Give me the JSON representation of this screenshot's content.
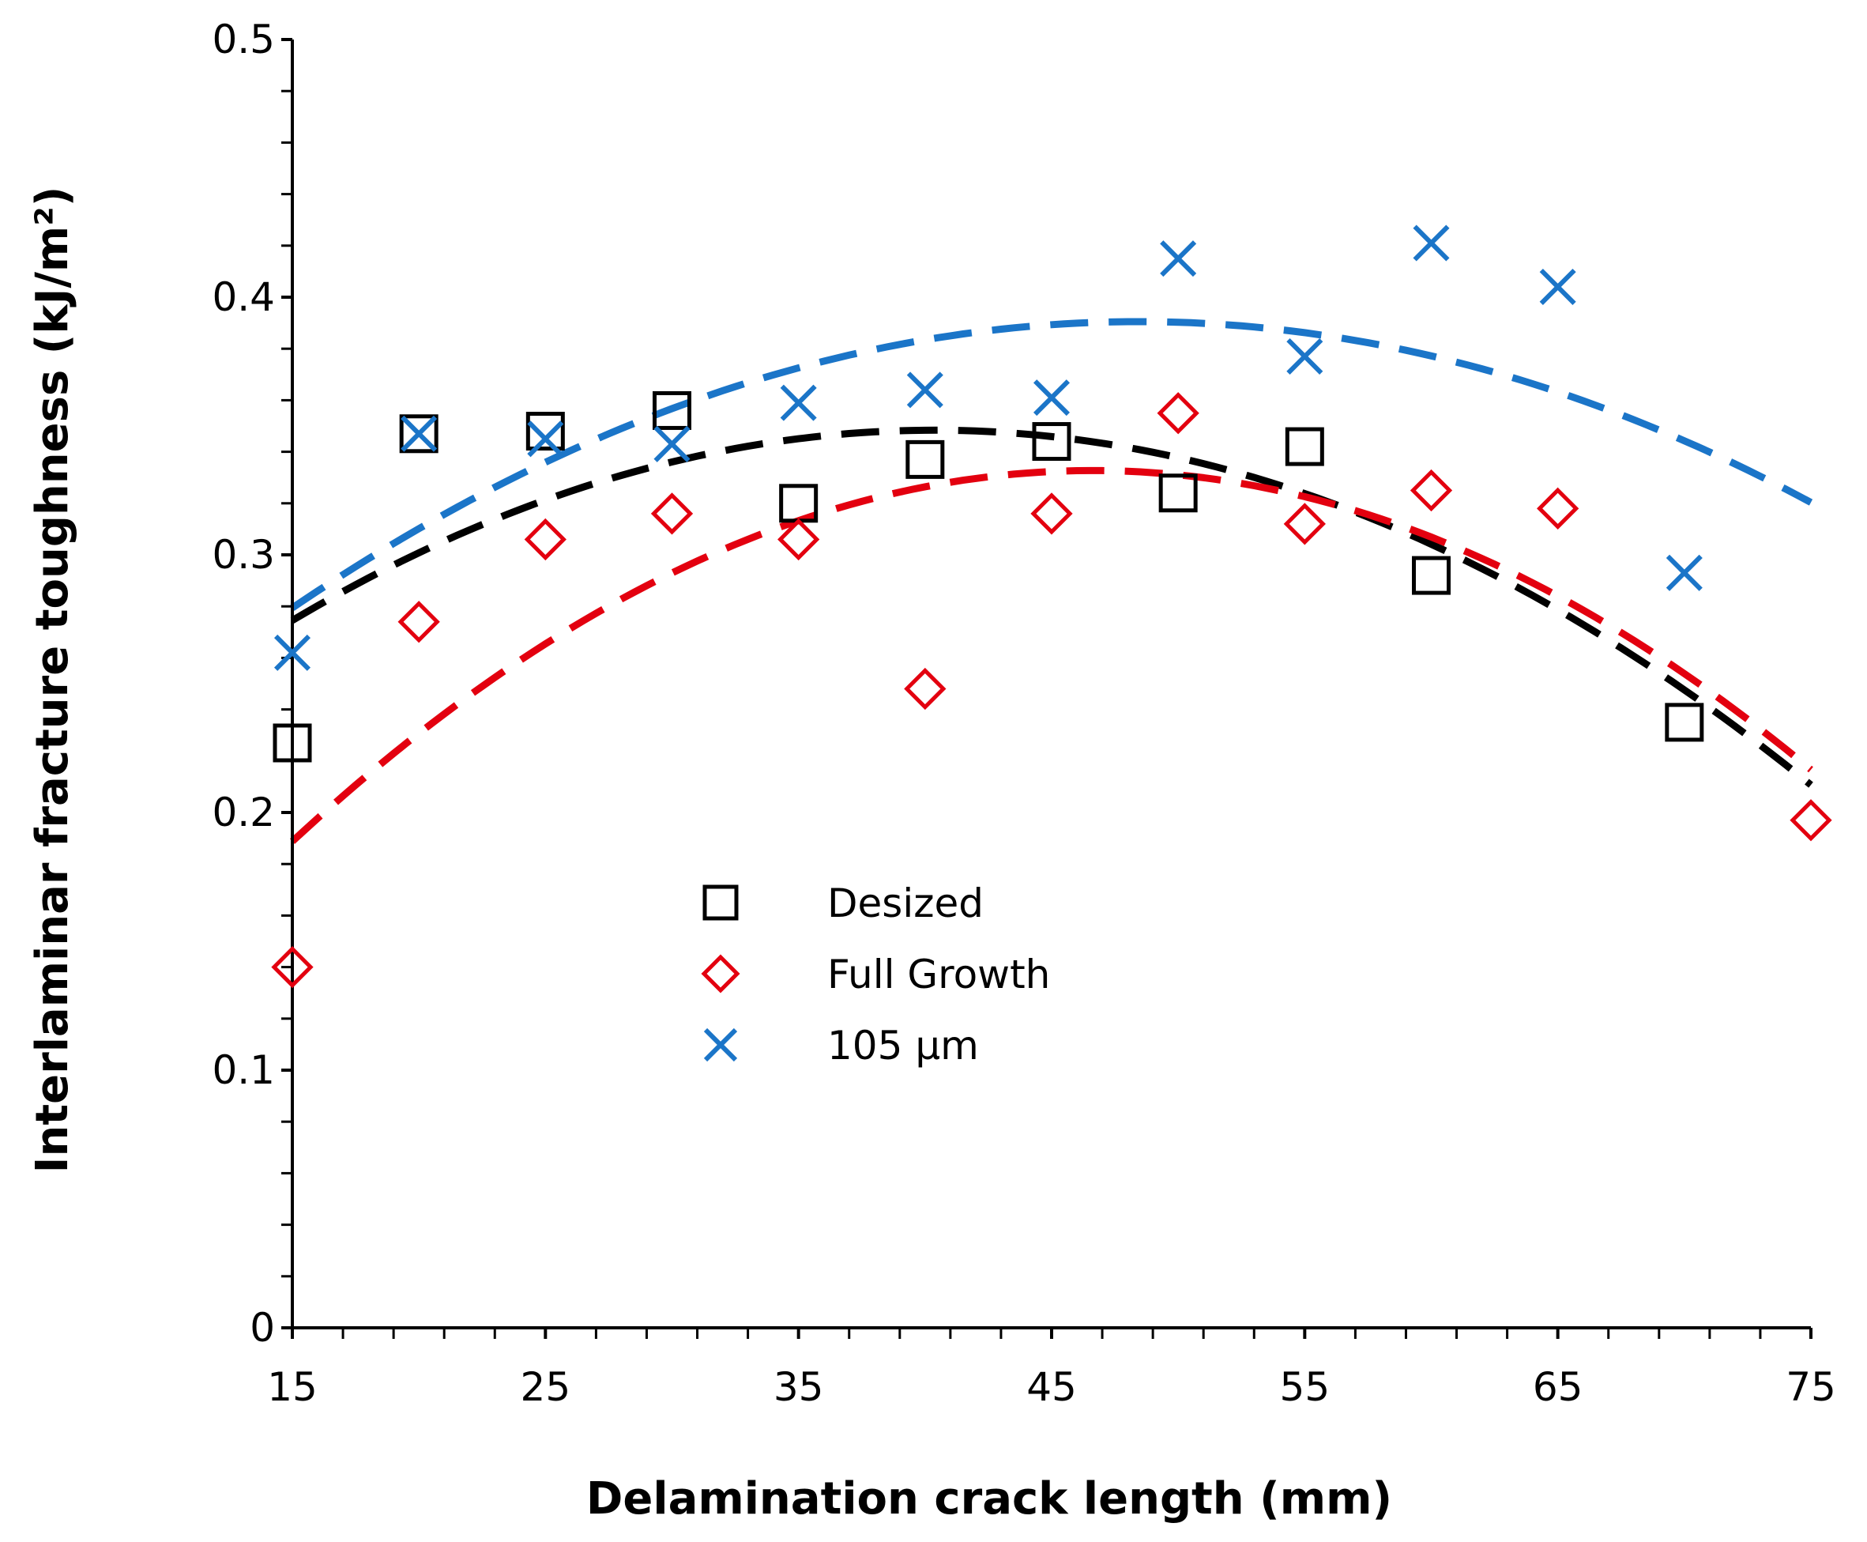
{
  "chart_data": {
    "type": "scatter",
    "title": "",
    "xlabel": "Delamination crack length (mm)",
    "ylabel": "Interlaminar fracture toughness (kJ/m²)",
    "xlim": [
      15,
      75
    ],
    "ylim": [
      0,
      0.5
    ],
    "x_ticks": [
      "15",
      "25",
      "35",
      "45",
      "55",
      "65",
      "75"
    ],
    "y_ticks": [
      "0",
      "0.1",
      "0.2",
      "0.3",
      "0.4",
      "0.5"
    ],
    "grid": false,
    "legend_position": "center",
    "series": [
      {
        "name": "Desized",
        "marker": "square",
        "color": "#000000",
        "x": [
          15,
          20,
          25,
          30,
          35,
          40,
          45,
          50,
          55,
          60,
          70
        ],
        "y": [
          0.227,
          0.347,
          0.348,
          0.356,
          0.32,
          0.337,
          0.344,
          0.324,
          0.342,
          0.292,
          0.235
        ],
        "trendline": {
          "type": "polynomial",
          "x_range": [
            15,
            75
          ],
          "points": [
            [
              15,
              0.262
            ],
            [
              25,
              0.335
            ],
            [
              35,
              0.356
            ],
            [
              45,
              0.345
            ],
            [
              55,
              0.312
            ],
            [
              65,
              0.268
            ],
            [
              75,
              0.222
            ]
          ]
        }
      },
      {
        "name": "Full Growth",
        "marker": "diamond",
        "color": "#e3000f",
        "x": [
          15,
          20,
          25,
          30,
          35,
          40,
          45,
          50,
          55,
          60,
          65,
          75
        ],
        "y": [
          0.14,
          0.274,
          0.306,
          0.316,
          0.306,
          0.248,
          0.316,
          0.355,
          0.312,
          0.325,
          0.318,
          0.197
        ],
        "trendline": {
          "type": "polynomial",
          "x_range": [
            15,
            75
          ],
          "points": [
            [
              15,
              0.189
            ],
            [
              25,
              0.265
            ],
            [
              35,
              0.313
            ],
            [
              45,
              0.333
            ],
            [
              55,
              0.323
            ],
            [
              65,
              0.283
            ],
            [
              75,
              0.217
            ]
          ]
        }
      },
      {
        "name": "105 μm",
        "marker": "x",
        "color": "#1b75c8",
        "x": [
          15,
          20,
          25,
          30,
          35,
          40,
          45,
          50,
          55,
          60,
          65,
          70
        ],
        "y": [
          0.262,
          0.347,
          0.345,
          0.343,
          0.359,
          0.364,
          0.361,
          0.415,
          0.377,
          0.421,
          0.404,
          0.293
        ],
        "trendline": {
          "type": "polynomial",
          "x_range": [
            15,
            75
          ],
          "points": [
            [
              15,
              0.279
            ],
            [
              25,
              0.337
            ],
            [
              35,
              0.372
            ],
            [
              45,
              0.389
            ],
            [
              55,
              0.386
            ],
            [
              65,
              0.364
            ],
            [
              75,
              0.32
            ]
          ]
        }
      }
    ]
  }
}
